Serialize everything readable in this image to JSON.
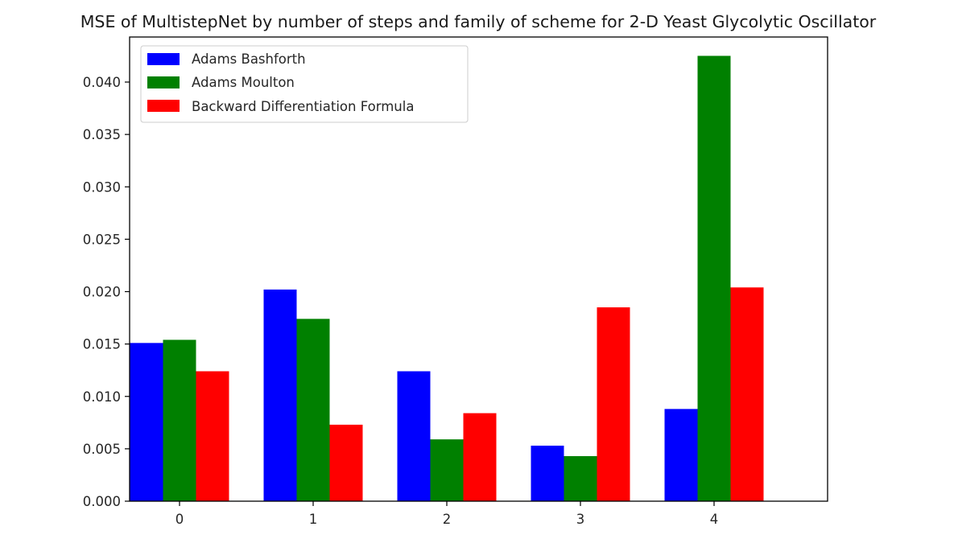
{
  "chart_data": {
    "type": "bar",
    "title": "MSE of MultistepNet by number of steps and family of scheme for 2-D Yeast Glycolytic Oscillator",
    "xlabel": "",
    "ylabel": "",
    "categories": [
      "0",
      "1",
      "2",
      "3",
      "4"
    ],
    "series": [
      {
        "name": "Adams Bashforth",
        "color": "#0000ff",
        "values": [
          0.0151,
          0.0202,
          0.0124,
          0.0053,
          0.0088
        ]
      },
      {
        "name": "Adams Moulton",
        "color": "#008000",
        "values": [
          0.0154,
          0.0174,
          0.0059,
          0.0043,
          0.0425
        ]
      },
      {
        "name": "Backward Differentiation Formula",
        "color": "#ff0000",
        "values": [
          0.0124,
          0.0073,
          0.0084,
          0.0185,
          0.0204
        ]
      }
    ],
    "ylim": [
      0,
      0.0443
    ],
    "yticks": [
      "0.000",
      "0.005",
      "0.010",
      "0.015",
      "0.020",
      "0.025",
      "0.030",
      "0.035",
      "0.040"
    ],
    "grid": false,
    "legend": "upper left"
  }
}
